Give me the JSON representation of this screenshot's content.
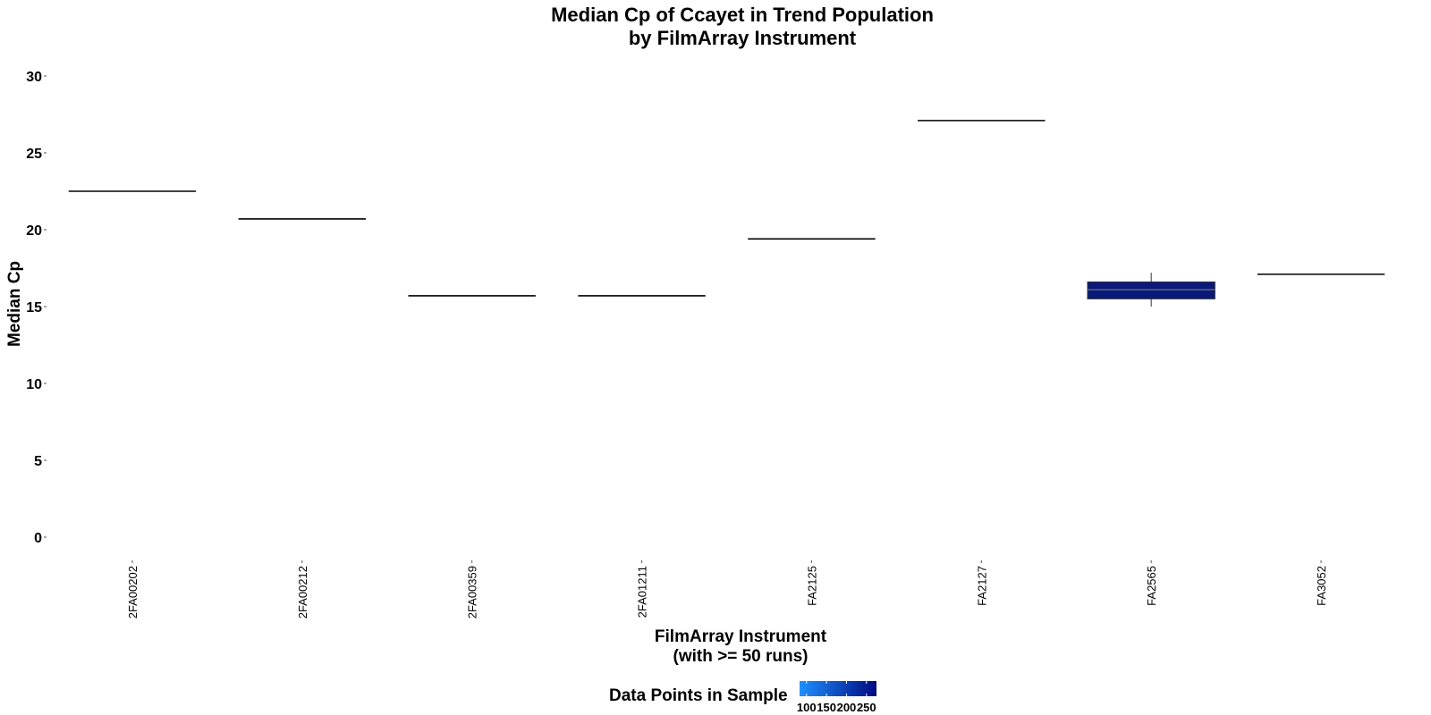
{
  "chart_data": {
    "type": "boxplot",
    "title": [
      "Median Cp of Ccayet in Trend Population",
      "by FilmArray Instrument"
    ],
    "xlabel": [
      "FilmArray Instrument",
      "(with >= 50 runs)"
    ],
    "ylabel": "Median Cp",
    "ylim": [
      0,
      30
    ],
    "yticks": [
      0,
      5,
      10,
      15,
      20,
      25,
      30
    ],
    "grid": false,
    "categories": [
      "2FA00202",
      "2FA00212",
      "2FA00359",
      "2FA01211",
      "FA2125",
      "FA2127",
      "FA2565",
      "FA3052"
    ],
    "boxes": [
      {
        "median": 22.5,
        "q1": 22.5,
        "q3": 22.5,
        "whisker_low": 22.5,
        "whisker_high": 22.5,
        "n": 1
      },
      {
        "median": 20.7,
        "q1": 20.7,
        "q3": 20.7,
        "whisker_low": 20.7,
        "whisker_high": 20.7,
        "n": 1
      },
      {
        "median": 15.7,
        "q1": 15.7,
        "q3": 15.7,
        "whisker_low": 15.7,
        "whisker_high": 15.7,
        "n": 1
      },
      {
        "median": 15.7,
        "q1": 15.7,
        "q3": 15.7,
        "whisker_low": 15.7,
        "whisker_high": 15.7,
        "n": 1
      },
      {
        "median": 19.4,
        "q1": 19.4,
        "q3": 19.4,
        "whisker_low": 19.4,
        "whisker_high": 19.4,
        "n": 1
      },
      {
        "median": 27.1,
        "q1": 27.1,
        "q3": 27.1,
        "whisker_low": 27.1,
        "whisker_high": 27.1,
        "n": 1
      },
      {
        "median": 16.1,
        "q1": 15.5,
        "q3": 16.6,
        "whisker_low": 15.0,
        "whisker_high": 17.2,
        "n": 250,
        "fill": "#0a1a7a"
      },
      {
        "median": 17.1,
        "q1": 17.1,
        "q3": 17.1,
        "whisker_low": 17.1,
        "whisker_high": 17.1,
        "n": 1
      }
    ],
    "legend": {
      "title": "Data Points in Sample",
      "placement": "bottom",
      "tick_labels": [
        "100",
        "150",
        "200",
        "250"
      ],
      "color_low": "#1e90ff",
      "color_high": "#000a80"
    }
  }
}
